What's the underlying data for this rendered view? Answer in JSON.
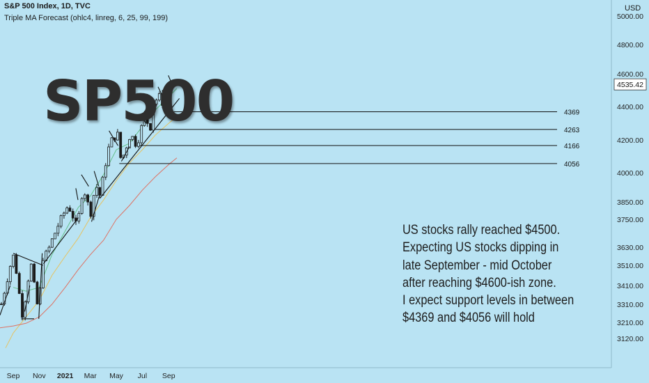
{
  "header": {
    "title": "S&P 500 Index, 1D, TVC",
    "indicator": "Triple MA Forecast (ohlc4, linreg, 6, 25, 99, 199)"
  },
  "currency": "USD",
  "big_title": "SP500",
  "note": [
    "US stocks rally reached $4500.",
    "Expecting US stocks dipping in",
    "late September - mid October",
    "after reaching $4600-ish zone.",
    "I expect support levels in between",
    "$4369 and $4056 will hold"
  ],
  "price_badge": "4535.42",
  "colors": {
    "background": "#b9e3f3",
    "candle": "#1a1a1a",
    "ma_short": "#5fbf86",
    "ma_mid": "#e8c15a",
    "ma_long": "#e06a5a",
    "trendline": "#111111"
  },
  "chart_data": {
    "type": "candlestick",
    "title": "S&P 500 Index, 1D, TVC",
    "ylabel": "USD",
    "ylim": [
      3050,
      5050
    ],
    "y_ticks": [
      "5000.00",
      "4800.00",
      "4600.00",
      "4400.00",
      "4200.00",
      "4000.00",
      "3850.00",
      "3750.00",
      "3630.00",
      "3510.00",
      "3410.00",
      "3310.00",
      "3210.00",
      "3120.00"
    ],
    "x_ticks": [
      "Sep",
      "Nov",
      "2021",
      "Mar",
      "May",
      "Jul",
      "Sep"
    ],
    "support_levels": [
      {
        "label": "4369",
        "value": 4369
      },
      {
        "label": "4263",
        "value": 4263
      },
      {
        "label": "4166",
        "value": 4166
      },
      {
        "label": "4056",
        "value": 4056
      }
    ],
    "close_price_path": [
      {
        "date": "2020-08-03",
        "close": 3300
      },
      {
        "date": "2020-09-02",
        "close": 3580
      },
      {
        "date": "2020-09-23",
        "close": 3240
      },
      {
        "date": "2020-10-12",
        "close": 3530
      },
      {
        "date": "2020-10-30",
        "close": 3270
      },
      {
        "date": "2020-11-09",
        "close": 3550
      },
      {
        "date": "2020-12-01",
        "close": 3660
      },
      {
        "date": "2021-01-08",
        "close": 3830
      },
      {
        "date": "2021-01-29",
        "close": 3710
      },
      {
        "date": "2021-02-12",
        "close": 3930
      },
      {
        "date": "2021-03-04",
        "close": 3770
      },
      {
        "date": "2021-03-12",
        "close": 3950
      },
      {
        "date": "2021-03-24",
        "close": 3880
      },
      {
        "date": "2021-04-16",
        "close": 4190
      },
      {
        "date": "2021-05-07",
        "close": 4240
      },
      {
        "date": "2021-05-12",
        "close": 4060
      },
      {
        "date": "2021-06-04",
        "close": 4240
      },
      {
        "date": "2021-06-18",
        "close": 4160
      },
      {
        "date": "2021-07-07",
        "close": 4360
      },
      {
        "date": "2021-07-19",
        "close": 4250
      },
      {
        "date": "2021-07-26",
        "close": 4420
      },
      {
        "date": "2021-08-13",
        "close": 4470
      },
      {
        "date": "2021-08-19",
        "close": 4400
      },
      {
        "date": "2021-09-03",
        "close": 4535.42
      }
    ],
    "moving_averages": [
      {
        "name": "MA 25",
        "color": "#5fbf86",
        "points": [
          {
            "date": "2020-09-01",
            "value": 3400
          },
          {
            "date": "2020-10-01",
            "value": 3380
          },
          {
            "date": "2020-11-01",
            "value": 3400
          },
          {
            "date": "2020-12-01",
            "value": 3580
          },
          {
            "date": "2021-01-01",
            "value": 3700
          },
          {
            "date": "2021-02-01",
            "value": 3820
          },
          {
            "date": "2021-03-01",
            "value": 3880
          },
          {
            "date": "2021-04-01",
            "value": 3990
          },
          {
            "date": "2021-05-01",
            "value": 4140
          },
          {
            "date": "2021-06-01",
            "value": 4180
          },
          {
            "date": "2021-07-01",
            "value": 4280
          },
          {
            "date": "2021-08-01",
            "value": 4380
          },
          {
            "date": "2021-09-01",
            "value": 4460
          },
          {
            "date": "2021-09-20",
            "value": 4510
          }
        ]
      },
      {
        "name": "MA 99",
        "color": "#e8c15a",
        "points": [
          {
            "date": "2020-08-14",
            "value": 3080
          },
          {
            "date": "2020-09-01",
            "value": 3150
          },
          {
            "date": "2020-10-01",
            "value": 3240
          },
          {
            "date": "2020-11-01",
            "value": 3330
          },
          {
            "date": "2020-12-01",
            "value": 3460
          },
          {
            "date": "2021-01-01",
            "value": 3570
          },
          {
            "date": "2021-02-01",
            "value": 3670
          },
          {
            "date": "2021-03-01",
            "value": 3760
          },
          {
            "date": "2021-04-01",
            "value": 3860
          },
          {
            "date": "2021-05-01",
            "value": 3960
          },
          {
            "date": "2021-06-01",
            "value": 4060
          },
          {
            "date": "2021-07-01",
            "value": 4140
          },
          {
            "date": "2021-08-01",
            "value": 4230
          },
          {
            "date": "2021-09-01",
            "value": 4300
          },
          {
            "date": "2021-09-20",
            "value": 4340
          }
        ]
      },
      {
        "name": "MA 199",
        "color": "#e06a5a",
        "points": [
          {
            "date": "2020-08-01",
            "value": 3180
          },
          {
            "date": "2020-09-01",
            "value": 3190
          },
          {
            "date": "2020-10-01",
            "value": 3205
          },
          {
            "date": "2020-11-01",
            "value": 3240
          },
          {
            "date": "2020-12-01",
            "value": 3310
          },
          {
            "date": "2021-01-01",
            "value": 3400
          },
          {
            "date": "2021-02-01",
            "value": 3490
          },
          {
            "date": "2021-03-01",
            "value": 3580
          },
          {
            "date": "2021-04-01",
            "value": 3660
          },
          {
            "date": "2021-05-01",
            "value": 3750
          },
          {
            "date": "2021-06-01",
            "value": 3830
          },
          {
            "date": "2021-07-01",
            "value": 3910
          },
          {
            "date": "2021-08-01",
            "value": 3980
          },
          {
            "date": "2021-09-01",
            "value": 4050
          },
          {
            "date": "2021-09-20",
            "value": 4090
          }
        ]
      }
    ],
    "trendlines": [
      {
        "from": {
          "date": "2020-08-01",
          "value": 3250
        },
        "to": {
          "date": "2020-08-25",
          "value": 3410
        }
      },
      {
        "from": {
          "date": "2020-09-01",
          "value": 3590
        },
        "to": {
          "date": "2020-11-10",
          "value": 3510
        }
      },
      {
        "from": {
          "date": "2020-09-20",
          "value": 3230
        },
        "to": {
          "date": "2020-10-20",
          "value": 3230
        }
      },
      {
        "from": {
          "date": "2020-09-28",
          "value": 3270
        },
        "to": {
          "date": "2020-10-10",
          "value": 3410
        }
      },
      {
        "from": {
          "date": "2020-10-31",
          "value": 3230
        },
        "to": {
          "date": "2020-11-08",
          "value": 3590
        }
      },
      {
        "from": {
          "date": "2020-11-11",
          "value": 3520
        },
        "to": {
          "date": "2021-02-01",
          "value": 3760
        }
      },
      {
        "from": {
          "date": "2021-01-26",
          "value": 3920
        },
        "to": {
          "date": "2021-01-31",
          "value": 3860
        }
      },
      {
        "from": {
          "date": "2021-02-08",
          "value": 3990
        },
        "to": {
          "date": "2021-02-25",
          "value": 3930
        }
      },
      {
        "from": {
          "date": "2021-03-04",
          "value": 3740
        },
        "to": {
          "date": "2021-03-22",
          "value": 3880
        }
      },
      {
        "from": {
          "date": "2021-03-10",
          "value": 4010
        },
        "to": {
          "date": "2021-03-21",
          "value": 3930
        }
      },
      {
        "from": {
          "date": "2021-03-24",
          "value": 3870
        },
        "to": {
          "date": "2021-09-26",
          "value": 4450
        }
      },
      {
        "from": {
          "date": "2021-04-14",
          "value": 4255
        },
        "to": {
          "date": "2021-05-05",
          "value": 4165
        }
      },
      {
        "from": {
          "date": "2021-05-13",
          "value": 4070
        },
        "to": {
          "date": "2021-06-01",
          "value": 4160
        }
      },
      {
        "from": {
          "date": "2021-06-28",
          "value": 4350
        },
        "to": {
          "date": "2021-07-09",
          "value": 4300
        }
      },
      {
        "from": {
          "date": "2021-08-07",
          "value": 4520
        },
        "to": {
          "date": "2021-08-20",
          "value": 4450
        }
      },
      {
        "from": {
          "date": "2021-08-21",
          "value": 4395
        },
        "to": {
          "date": "2021-08-25",
          "value": 4460
        }
      },
      {
        "from": {
          "date": "2021-08-31",
          "value": 4590
        },
        "to": {
          "date": "2021-09-10",
          "value": 4530
        }
      }
    ]
  }
}
